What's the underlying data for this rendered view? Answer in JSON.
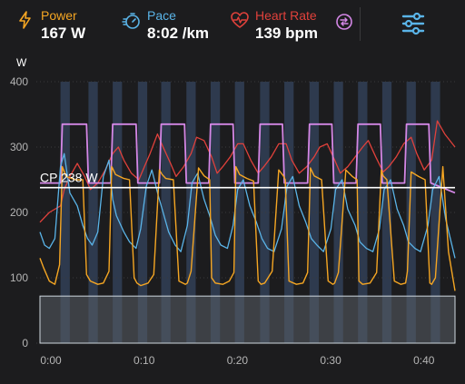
{
  "metrics": {
    "power": {
      "label": "Power",
      "value": "167 W",
      "color": "#f5a623"
    },
    "pace": {
      "label": "Pace",
      "value": "8:02 /km",
      "color": "#5ab4e8"
    },
    "heart_rate": {
      "label": "Heart Rate",
      "value": "139 bpm",
      "color": "#e0413b"
    }
  },
  "icons": {
    "power": "lightning-icon",
    "pace": "stopwatch-icon",
    "heart_rate": "heart-pulse-icon",
    "swap": "swap-metric-icon",
    "filter": "sliders-icon"
  },
  "colors": {
    "background": "#1c1c1e",
    "interval": "#2e3a4e",
    "power_target": "#d487e6",
    "cp_line": "#ffffff",
    "zone_fill": "#5a5f66"
  },
  "chart_data": {
    "type": "line",
    "ylabel": "W",
    "ylim": [
      0,
      400
    ],
    "yticks": [
      0,
      100,
      200,
      300,
      400
    ],
    "xlim": [
      0,
      44.5
    ],
    "xticks": [
      0,
      10,
      20,
      30,
      40
    ],
    "xtick_labels": [
      "0:00",
      "0:10",
      "0:20",
      "0:30",
      "0:40"
    ],
    "cp": {
      "label": "CP 238 W",
      "value": 238
    },
    "lower_zone": 72,
    "interval_blocks": [
      [
        2.2,
        3.2
      ],
      [
        5.2,
        6.2
      ],
      [
        7.8,
        8.8
      ],
      [
        10.5,
        11.5
      ],
      [
        13.0,
        14.0
      ],
      [
        15.7,
        16.7
      ],
      [
        18.3,
        19.3
      ],
      [
        20.9,
        21.9
      ],
      [
        23.6,
        24.6
      ],
      [
        26.2,
        27.2
      ],
      [
        28.9,
        29.9
      ],
      [
        31.5,
        32.5
      ],
      [
        34.1,
        35.1
      ],
      [
        36.7,
        37.7
      ],
      [
        39.3,
        40.3
      ],
      [
        41.9,
        42.9
      ]
    ],
    "series": [
      {
        "key": "target",
        "x": [
          0,
          2.2,
          2.4,
          5.0,
          5.2,
          7.6,
          7.8,
          10.3,
          10.5,
          12.8,
          13.0,
          15.5,
          15.7,
          18.1,
          18.3,
          20.7,
          20.9,
          23.4,
          23.6,
          26.0,
          26.2,
          28.7,
          28.9,
          31.3,
          31.5,
          33.9,
          34.1,
          36.5,
          36.7,
          39.1,
          39.3,
          41.7,
          41.9,
          44.5
        ],
        "y": [
          245,
          245,
          335,
          335,
          245,
          245,
          335,
          335,
          245,
          245,
          335,
          335,
          245,
          245,
          335,
          335,
          245,
          245,
          335,
          335,
          245,
          245,
          335,
          335,
          245,
          245,
          335,
          335,
          245,
          245,
          335,
          335,
          245,
          230
        ]
      },
      {
        "key": "power",
        "x": [
          0,
          0.4,
          1.0,
          1.6,
          2.1,
          2.4,
          2.8,
          3.8,
          4.6,
          5.0,
          5.4,
          6.2,
          6.8,
          7.4,
          7.7,
          8.1,
          9.0,
          9.6,
          10.1,
          10.4,
          10.8,
          11.6,
          12.2,
          12.8,
          13.1,
          13.5,
          14.3,
          14.9,
          15.6,
          15.8,
          16.2,
          17.0,
          17.6,
          18.2,
          18.4,
          18.8,
          19.6,
          20.3,
          20.8,
          21.0,
          21.4,
          22.2,
          22.9,
          23.4,
          23.7,
          24.1,
          24.9,
          25.6,
          26.1,
          26.3,
          26.7,
          27.5,
          28.2,
          28.7,
          29.0,
          29.4,
          30.2,
          30.9,
          31.4,
          31.6,
          32.0,
          32.8,
          33.5,
          34.0,
          34.2,
          34.6,
          35.4,
          36.1,
          36.6,
          36.8,
          37.2,
          38.0,
          38.7,
          39.2,
          39.4,
          39.8,
          40.6,
          41.3,
          41.8,
          42.0,
          42.4,
          43.2,
          43.8,
          44.5
        ],
        "y": [
          130,
          115,
          95,
          90,
          120,
          270,
          255,
          250,
          250,
          105,
          95,
          90,
          92,
          110,
          270,
          258,
          252,
          250,
          100,
          92,
          88,
          92,
          105,
          265,
          258,
          252,
          250,
          95,
          90,
          92,
          110,
          268,
          256,
          250,
          100,
          92,
          90,
          95,
          108,
          270,
          258,
          252,
          248,
          95,
          90,
          92,
          110,
          265,
          256,
          250,
          95,
          90,
          92,
          108,
          268,
          256,
          250,
          95,
          90,
          92,
          108,
          265,
          255,
          250,
          95,
          90,
          92,
          108,
          265,
          256,
          250,
          95,
          90,
          92,
          110,
          262,
          255,
          250,
          92,
          90,
          100,
          270,
          140,
          80
        ]
      },
      {
        "key": "pace",
        "x": [
          0,
          0.5,
          1.0,
          1.6,
          2.2,
          2.6,
          3.2,
          4.0,
          4.6,
          5.1,
          5.6,
          6.2,
          6.8,
          7.4,
          7.8,
          8.2,
          9.0,
          9.6,
          10.3,
          10.8,
          11.4,
          12.0,
          12.7,
          13.2,
          13.8,
          14.5,
          15.1,
          15.8,
          16.3,
          16.9,
          17.6,
          18.2,
          18.8,
          19.4,
          20.1,
          20.7,
          21.2,
          21.8,
          22.5,
          23.2,
          23.8,
          24.4,
          25.1,
          25.9,
          26.5,
          27.1,
          27.8,
          28.5,
          29.1,
          29.7,
          30.4,
          31.2,
          31.7,
          32.4,
          33.0,
          33.8,
          34.3,
          35.0,
          35.7,
          36.4,
          36.9,
          37.6,
          38.3,
          39.0,
          39.5,
          40.2,
          40.8,
          41.6,
          42.1,
          42.8,
          43.5,
          44.5
        ],
        "y": [
          170,
          150,
          145,
          160,
          270,
          290,
          230,
          210,
          180,
          160,
          150,
          170,
          255,
          280,
          220,
          195,
          170,
          155,
          145,
          175,
          240,
          265,
          225,
          200,
          170,
          150,
          140,
          180,
          245,
          260,
          220,
          195,
          165,
          150,
          145,
          180,
          235,
          250,
          210,
          185,
          160,
          145,
          140,
          175,
          240,
          255,
          210,
          185,
          160,
          150,
          140,
          175,
          235,
          250,
          205,
          180,
          155,
          145,
          140,
          175,
          235,
          250,
          205,
          180,
          155,
          145,
          140,
          180,
          235,
          255,
          190,
          130
        ]
      },
      {
        "key": "heart",
        "x": [
          0,
          1.0,
          2.2,
          2.6,
          3.2,
          4.0,
          4.8,
          5.4,
          6.2,
          7.0,
          7.8,
          8.4,
          9.0,
          9.8,
          10.6,
          11.2,
          11.8,
          12.6,
          13.2,
          14.0,
          14.6,
          15.4,
          16.2,
          16.8,
          17.6,
          18.4,
          19.0,
          19.6,
          20.4,
          21.2,
          21.8,
          22.6,
          23.4,
          24.0,
          24.8,
          25.6,
          26.4,
          27.0,
          27.8,
          28.6,
          29.4,
          30.0,
          30.8,
          31.6,
          32.2,
          33.0,
          33.8,
          34.6,
          35.2,
          36.0,
          36.8,
          37.4,
          38.2,
          39.0,
          39.8,
          40.4,
          41.2,
          42.0,
          42.6,
          43.4,
          44.5
        ],
        "y": [
          185,
          200,
          210,
          235,
          255,
          275,
          255,
          235,
          245,
          265,
          290,
          300,
          280,
          260,
          250,
          270,
          290,
          320,
          300,
          275,
          255,
          270,
          290,
          315,
          310,
          285,
          260,
          270,
          285,
          305,
          305,
          280,
          260,
          270,
          285,
          305,
          305,
          280,
          260,
          270,
          285,
          300,
          305,
          280,
          260,
          270,
          285,
          300,
          310,
          285,
          262,
          270,
          285,
          305,
          315,
          290,
          265,
          280,
          340,
          320,
          300
        ]
      }
    ]
  }
}
